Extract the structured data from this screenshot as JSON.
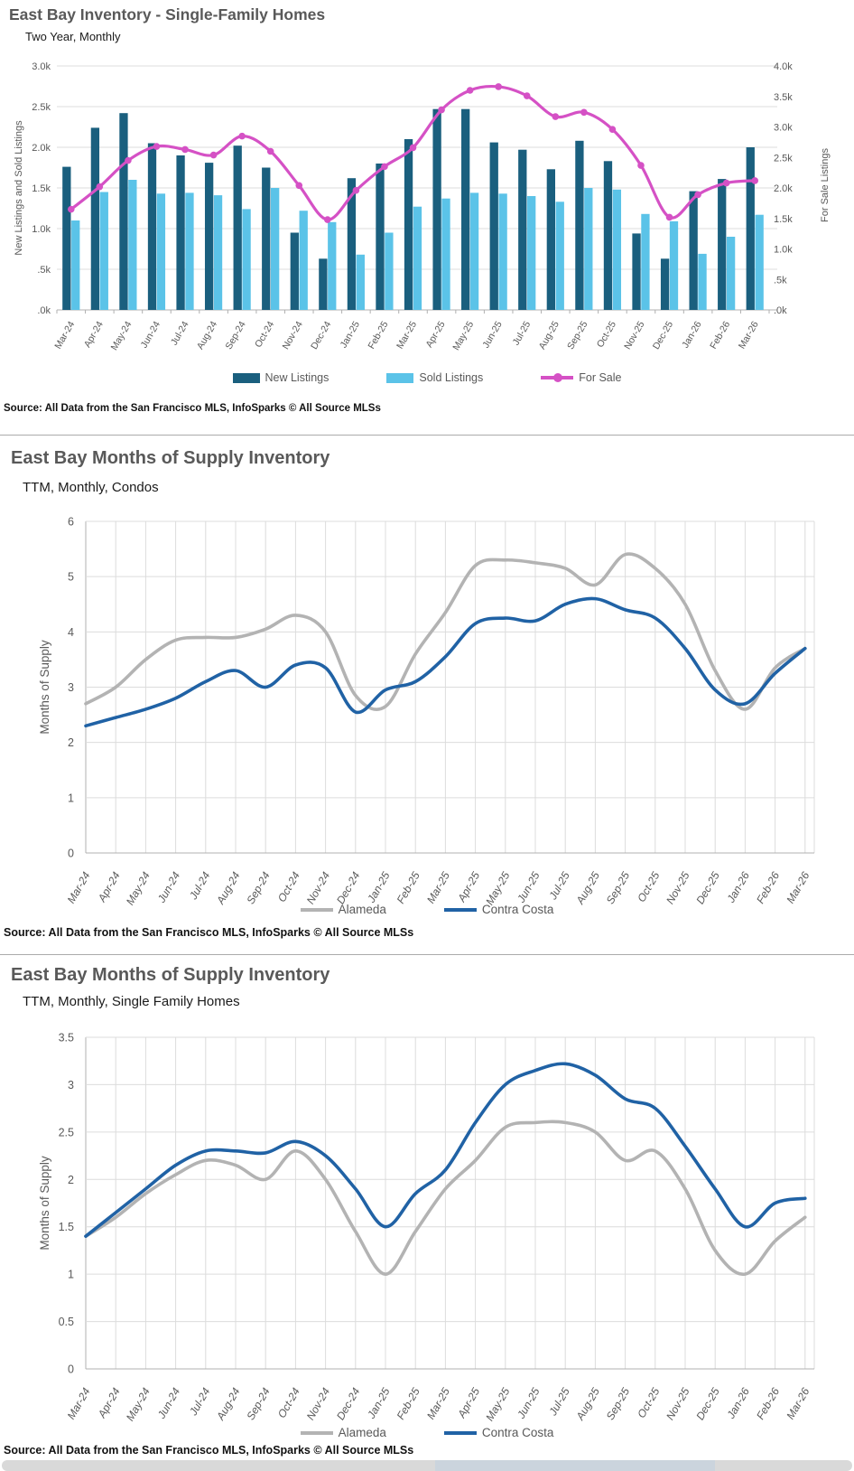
{
  "source_note": "Source: All Data from the San Francisco MLS, InfoSparks © All Source MLSs",
  "months": [
    "Mar-24",
    "Apr-24",
    "May-24",
    "Jun-24",
    "Jul-24",
    "Aug-24",
    "Sep-24",
    "Oct-24",
    "Nov-24",
    "Dec-24",
    "Jan-25",
    "Feb-25",
    "Mar-25",
    "Apr-25",
    "May-25",
    "Jun-25",
    "Jul-25",
    "Aug-25",
    "Sep-25",
    "Oct-25",
    "Nov-25",
    "Dec-25",
    "Jan-26",
    "Feb-26",
    "Mar-26"
  ],
  "bottom_strip": {
    "base_color": "#d9d9d9",
    "accent_color": "#cbd4dd"
  },
  "chart_data": [
    {
      "type": "bar",
      "title": "East Bay Inventory - Single-Family Homes",
      "subtitle": "Two Year, Monthly",
      "categories": [
        "Mar-24",
        "Apr-24",
        "May-24",
        "Jun-24",
        "Jul-24",
        "Aug-24",
        "Sep-24",
        "Oct-24",
        "Nov-24",
        "Dec-24",
        "Jan-25",
        "Feb-25",
        "Mar-25",
        "Apr-25",
        "May-25",
        "Jun-25",
        "Jul-25",
        "Aug-25",
        "Sep-25",
        "Oct-25",
        "Nov-25",
        "Dec-25",
        "Jan-26",
        "Feb-26",
        "Mar-26"
      ],
      "series": [
        {
          "name": "New Listings",
          "kind": "bar",
          "axis": "left",
          "color": "#1a5f7e",
          "values": [
            1.76,
            2.24,
            2.42,
            2.05,
            1.9,
            1.81,
            2.02,
            1.75,
            0.95,
            0.63,
            1.62,
            1.8,
            2.1,
            2.47,
            2.47,
            2.06,
            1.97,
            1.73,
            2.08,
            1.83,
            0.94,
            0.63,
            1.46,
            1.61,
            2.0
          ]
        },
        {
          "name": "Sold Listings",
          "kind": "bar",
          "axis": "left",
          "color": "#5bc3e8",
          "values": [
            1.1,
            1.45,
            1.6,
            1.43,
            1.44,
            1.41,
            1.24,
            1.5,
            1.22,
            1.08,
            0.68,
            0.95,
            1.27,
            1.37,
            1.44,
            1.43,
            1.4,
            1.33,
            1.5,
            1.48,
            1.18,
            1.09,
            0.69,
            0.9,
            1.17
          ]
        },
        {
          "name": "For Sale",
          "kind": "line",
          "axis": "right",
          "color": "#d551c5",
          "values": [
            1.65,
            2.02,
            2.45,
            2.68,
            2.63,
            2.54,
            2.85,
            2.6,
            2.04,
            1.48,
            1.96,
            2.35,
            2.66,
            3.28,
            3.6,
            3.66,
            3.51,
            3.17,
            3.24,
            2.96,
            2.37,
            1.52,
            1.89,
            2.08,
            2.12
          ]
        }
      ],
      "left_axis": {
        "label": "New Listings and Sold Listings",
        "min": 0,
        "max": 3.0,
        "ticks": [
          ".0k",
          ".5k",
          "1.0k",
          "1.5k",
          "2.0k",
          "2.5k",
          "3.0k"
        ]
      },
      "right_axis": {
        "label": "For Sale Listings",
        "min": 0,
        "max": 4.0,
        "ticks": [
          ".0k",
          ".5k",
          "1.0k",
          "1.5k",
          "2.0k",
          "2.5k",
          "3.0k",
          "3.5k",
          "4.0k"
        ]
      },
      "grid": "horizontal",
      "legend_position": "bottom",
      "units": "thousands of listings"
    },
    {
      "type": "line",
      "title": "East Bay Months of Supply Inventory",
      "subtitle": "TTM, Monthly, Condos",
      "ylabel": "Months of Supply",
      "xlabel": "",
      "categories": [
        "Mar-24",
        "Apr-24",
        "May-24",
        "Jun-24",
        "Jul-24",
        "Aug-24",
        "Sep-24",
        "Oct-24",
        "Nov-24",
        "Dec-24",
        "Jan-25",
        "Feb-25",
        "Mar-25",
        "Apr-25",
        "May-25",
        "Jun-25",
        "Jul-25",
        "Aug-25",
        "Sep-25",
        "Oct-25",
        "Nov-25",
        "Dec-25",
        "Jan-26",
        "Feb-26",
        "Mar-26"
      ],
      "series": [
        {
          "name": "Alameda",
          "color": "#b3b3b3",
          "values": [
            2.7,
            3.0,
            3.5,
            3.85,
            3.9,
            3.9,
            4.05,
            4.3,
            4.0,
            2.85,
            2.65,
            3.6,
            4.35,
            5.2,
            5.3,
            5.25,
            5.15,
            4.85,
            5.4,
            5.15,
            4.5,
            3.3,
            2.6,
            3.35,
            3.7
          ]
        },
        {
          "name": "Contra Costa",
          "color": "#2062a5",
          "values": [
            2.3,
            2.45,
            2.6,
            2.8,
            3.1,
            3.3,
            3.0,
            3.4,
            3.35,
            2.55,
            2.95,
            3.1,
            3.55,
            4.15,
            4.25,
            4.2,
            4.5,
            4.6,
            4.4,
            4.25,
            3.7,
            2.95,
            2.7,
            3.25,
            3.7
          ]
        }
      ],
      "ylim": [
        0,
        6
      ],
      "yticks": [
        "0",
        "1",
        "2",
        "3",
        "4",
        "5",
        "6"
      ],
      "grid": "both",
      "legend_position": "bottom"
    },
    {
      "type": "line",
      "title": "East Bay Months of Supply Inventory",
      "subtitle": "TTM, Monthly, Single Family Homes",
      "ylabel": "Months of Supply",
      "xlabel": "",
      "categories": [
        "Mar-24",
        "Apr-24",
        "May-24",
        "Jun-24",
        "Jul-24",
        "Aug-24",
        "Sep-24",
        "Oct-24",
        "Nov-24",
        "Dec-24",
        "Jan-25",
        "Feb-25",
        "Mar-25",
        "Apr-25",
        "May-25",
        "Jun-25",
        "Jul-25",
        "Aug-25",
        "Sep-25",
        "Oct-25",
        "Nov-25",
        "Dec-25",
        "Jan-26",
        "Feb-26",
        "Mar-26"
      ],
      "series": [
        {
          "name": "Alameda",
          "color": "#b3b3b3",
          "values": [
            1.4,
            1.6,
            1.85,
            2.05,
            2.2,
            2.15,
            2.0,
            2.3,
            2.0,
            1.45,
            1.0,
            1.45,
            1.9,
            2.2,
            2.55,
            2.6,
            2.6,
            2.5,
            2.2,
            2.3,
            1.9,
            1.25,
            1.0,
            1.35,
            1.6
          ]
        },
        {
          "name": "Contra Costa",
          "color": "#2062a5",
          "values": [
            1.4,
            1.65,
            1.9,
            2.15,
            2.3,
            2.3,
            2.28,
            2.4,
            2.25,
            1.9,
            1.5,
            1.85,
            2.1,
            2.6,
            3.0,
            3.15,
            3.22,
            3.1,
            2.85,
            2.75,
            2.35,
            1.9,
            1.5,
            1.75,
            1.8
          ]
        }
      ],
      "ylim": [
        0,
        3.5
      ],
      "yticks": [
        "0",
        "0.5",
        "1",
        "1.5",
        "2",
        "2.5",
        "3",
        "3.5"
      ],
      "grid": "both",
      "legend_position": "bottom"
    }
  ]
}
